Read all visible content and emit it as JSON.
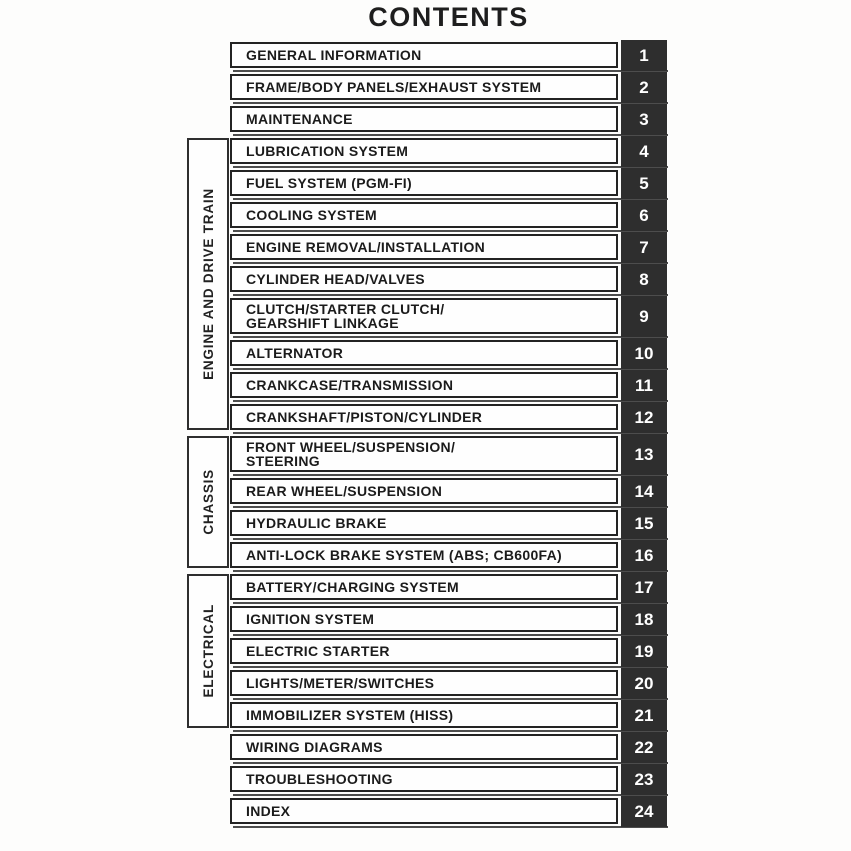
{
  "page": {
    "title": "CONTENTS"
  },
  "colors": {
    "badge_bg": "#2e2e2e",
    "badge_text": "#ffffff",
    "box_border": "#232323",
    "shadow_line": "#4d4d4d",
    "paper": "#fdfdfc"
  },
  "sections": [
    {
      "group": null,
      "entries": [
        {
          "lines": [
            "GENERAL INFORMATION"
          ],
          "num": "1"
        },
        {
          "lines": [
            "FRAME/BODY PANELS/EXHAUST SYSTEM"
          ],
          "num": "2"
        },
        {
          "lines": [
            "MAINTENANCE"
          ],
          "num": "3"
        }
      ]
    },
    {
      "group": "ENGINE AND DRIVE TRAIN",
      "entries": [
        {
          "lines": [
            "LUBRICATION SYSTEM"
          ],
          "num": "4"
        },
        {
          "lines": [
            "FUEL SYSTEM (PGM-FI)"
          ],
          "num": "5"
        },
        {
          "lines": [
            "COOLING SYSTEM"
          ],
          "num": "6"
        },
        {
          "lines": [
            "ENGINE REMOVAL/INSTALLATION"
          ],
          "num": "7"
        },
        {
          "lines": [
            "CYLINDER HEAD/VALVES"
          ],
          "num": "8"
        },
        {
          "lines": [
            "CLUTCH/STARTER CLUTCH/",
            "GEARSHIFT LINKAGE"
          ],
          "num": "9"
        },
        {
          "lines": [
            "ALTERNATOR"
          ],
          "num": "10"
        },
        {
          "lines": [
            "CRANKCASE/TRANSMISSION"
          ],
          "num": "11"
        },
        {
          "lines": [
            "CRANKSHAFT/PISTON/CYLINDER"
          ],
          "num": "12"
        }
      ]
    },
    {
      "group": "CHASSIS",
      "entries": [
        {
          "lines": [
            "FRONT WHEEL/SUSPENSION/",
            "STEERING"
          ],
          "num": "13"
        },
        {
          "lines": [
            "REAR WHEEL/SUSPENSION"
          ],
          "num": "14"
        },
        {
          "lines": [
            "HYDRAULIC BRAKE"
          ],
          "num": "15"
        },
        {
          "lines": [
            "ANTI-LOCK BRAKE SYSTEM (ABS; CB600FA)"
          ],
          "num": "16"
        }
      ]
    },
    {
      "group": "ELECTRICAL",
      "entries": [
        {
          "lines": [
            "BATTERY/CHARGING SYSTEM"
          ],
          "num": "17"
        },
        {
          "lines": [
            "IGNITION SYSTEM"
          ],
          "num": "18"
        },
        {
          "lines": [
            "ELECTRIC STARTER"
          ],
          "num": "19"
        },
        {
          "lines": [
            "LIGHTS/METER/SWITCHES"
          ],
          "num": "20"
        },
        {
          "lines": [
            "IMMOBILIZER SYSTEM (HISS)"
          ],
          "num": "21"
        }
      ]
    },
    {
      "group": null,
      "entries": [
        {
          "lines": [
            "WIRING DIAGRAMS"
          ],
          "num": "22"
        },
        {
          "lines": [
            "TROUBLESHOOTING"
          ],
          "num": "23"
        },
        {
          "lines": [
            "INDEX"
          ],
          "num": "24"
        }
      ]
    }
  ]
}
